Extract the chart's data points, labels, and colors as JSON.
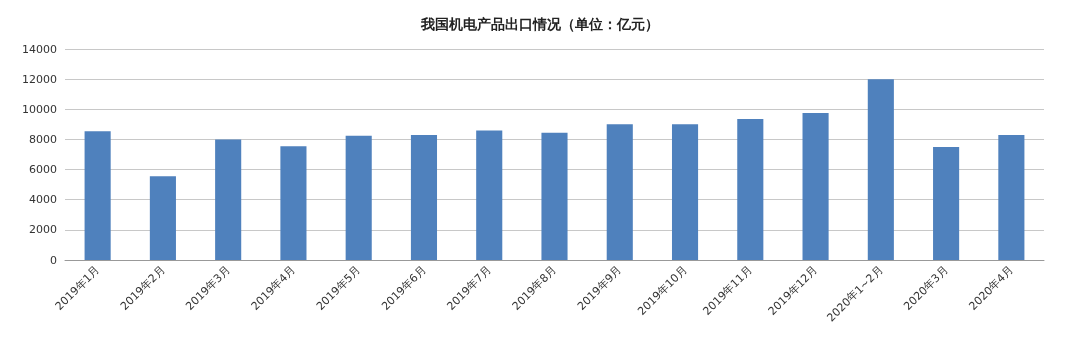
{
  "chart_data": {
    "type": "bar",
    "title": "我国机电产品出口情况（单位：亿元）",
    "categories": [
      "2019年1月",
      "2019年2月",
      "2019年3月",
      "2019年4月",
      "2019年5月",
      "2019年6月",
      "2019年7月",
      "2019年8月",
      "2019年9月",
      "2019年10月",
      "2019年11月",
      "2019年12月",
      "2020年1~2月",
      "2020年3月",
      "2020年4月"
    ],
    "values": [
      8550,
      5550,
      8000,
      7550,
      8250,
      8300,
      8600,
      8450,
      9000,
      9000,
      9350,
      9750,
      12000,
      7500,
      8300
    ],
    "color": "#4f81bd",
    "ylim": [
      0,
      14000
    ],
    "yticks": [
      0,
      2000,
      4000,
      6000,
      8000,
      10000,
      12000,
      14000
    ],
    "grid": "y"
  }
}
